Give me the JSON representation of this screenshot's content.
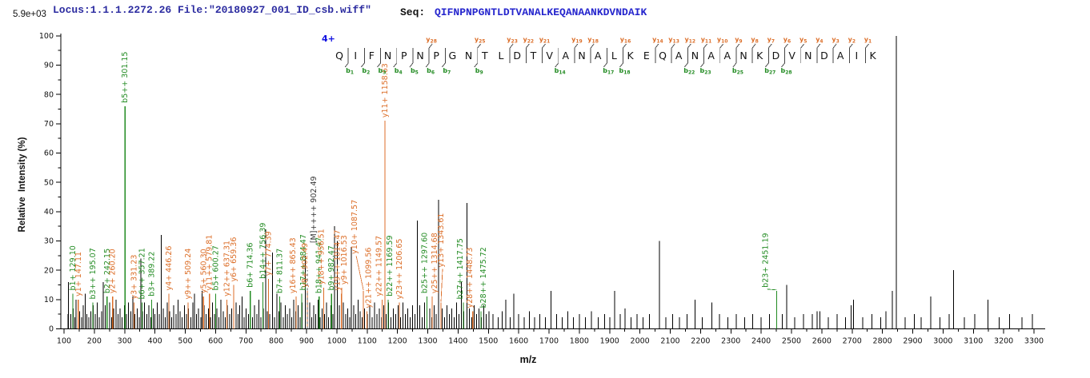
{
  "header": {
    "locus": "Locus:1.1.1.2272.26 File:\"20180927_001_ID_csb.wiff\"",
    "seq_label": "Seq:",
    "sequence": "QIFNPNPGNTLDTVANALKEQANAANKDVNDAIK"
  },
  "chart_data": {
    "type": "bar",
    "subtype": "ms2-stick-spectrum",
    "title": "Locus:1.1.1.2272.26 File:\"20180927_001_ID_csb.wiff\"",
    "xlabel": "m/z",
    "ylabel": "Relative  Intensity (%)",
    "base_peak_intensity": "5.9e+03",
    "xlim": [
      100,
      3300
    ],
    "ylim": [
      0,
      100
    ],
    "x_major_tick": 100,
    "x_minor_tick": 50,
    "y_major_tick": 10,
    "y_minor_tick": 5,
    "grid": false,
    "precursor": {
      "charge_label": "4+",
      "ion": "[M]++++",
      "mz": 902.49
    },
    "peptide": {
      "sequence": "QIFNPNPGNTLDTVANALKEQANAANKDVNDAIK",
      "b_sites": [
        1,
        2,
        3,
        4,
        5,
        6,
        7,
        9,
        14,
        17,
        18,
        22,
        23,
        25,
        27,
        28
      ],
      "y_sites": [
        1,
        2,
        3,
        4,
        5,
        6,
        7,
        8,
        9,
        10,
        11,
        12,
        13,
        14,
        16,
        18,
        19,
        21,
        22,
        23,
        25,
        28
      ]
    },
    "annotated_peaks": [
      {
        "ion": "b1+",
        "mz": 129.1,
        "intensity": 12,
        "series": "b"
      },
      {
        "ion": "y1+",
        "mz": 147.11,
        "intensity": 10,
        "series": "y"
      },
      {
        "ion": "b3++",
        "mz": 195.07,
        "intensity": 9,
        "series": "b"
      },
      {
        "ion": "b2+",
        "mz": 242.15,
        "intensity": 11,
        "series": "b"
      },
      {
        "ion": "y2+",
        "mz": 260.2,
        "intensity": 11,
        "series": "y"
      },
      {
        "ion": "b5++",
        "mz": 301.15,
        "intensity": 76,
        "series": "b"
      },
      {
        "ion": "y3+",
        "mz": 331.23,
        "intensity": 9,
        "series": "y"
      },
      {
        "ion": "b6++",
        "mz": 357.21,
        "intensity": 9,
        "series": "b"
      },
      {
        "ion": "b3+",
        "mz": 389.22,
        "intensity": 10,
        "series": "b"
      },
      {
        "ion": "y4+",
        "mz": 446.26,
        "intensity": 12,
        "series": "y"
      },
      {
        "ion": "y9++",
        "mz": 509.24,
        "intensity": 9,
        "series": "y"
      },
      {
        "ion": "y5+",
        "mz": 560.3,
        "intensity": 11,
        "series": "y"
      },
      {
        "ion": "y11++",
        "mz": 579.81,
        "intensity": 12,
        "series": "y"
      },
      {
        "ion": "b5+",
        "mz": 600.27,
        "intensity": 12,
        "series": "b"
      },
      {
        "ion": "y12++",
        "mz": 637.31,
        "intensity": 10,
        "series": "y"
      },
      {
        "ion": "y6+",
        "mz": 659.36,
        "intensity": 15,
        "series": "y"
      },
      {
        "ion": "b6+",
        "mz": 714.36,
        "intensity": 13,
        "series": "b"
      },
      {
        "ion": "b14++",
        "mz": 756.39,
        "intensity": 16,
        "series": "b"
      },
      {
        "ion": "y7+",
        "mz": 774.39,
        "intensity": 17,
        "series": "y"
      },
      {
        "ion": "b7+",
        "mz": 811.37,
        "intensity": 11,
        "series": "b"
      },
      {
        "ion": "y16++",
        "mz": 865.43,
        "intensity": 11,
        "series": "y",
        "dx": -4
      },
      {
        "ion": "b17++",
        "mz": 884.47,
        "intensity": 12,
        "series": "b",
        "dx": 2
      },
      {
        "ion": "y8+",
        "mz": 902.49,
        "intensity": 13,
        "series": "y",
        "dx": -3
      },
      {
        "ion": "[M]++++",
        "mz": 902.49,
        "intensity": 20,
        "series": "M",
        "dx": 8,
        "lift": 30,
        "dash": true
      },
      {
        "ion": "b18++",
        "mz": 941.47,
        "intensity": 11,
        "series": "b"
      },
      {
        "ion": "y18++",
        "mz": 956.51,
        "intensity": 14,
        "series": "y",
        "dx": -3
      },
      {
        "ion": "b9+",
        "mz": 982.47,
        "intensity": 12,
        "series": "b"
      },
      {
        "ion": "y19++",
        "mz": 1014.47,
        "intensity": 12,
        "series": "y",
        "dx": -5
      },
      {
        "ion": "y9+",
        "mz": 1016.53,
        "intensity": 14,
        "series": "y",
        "dx": 3
      },
      {
        "ion": "y10+",
        "mz": 1087.57,
        "intensity": 13,
        "series": "y",
        "dx": -11,
        "lift": 42,
        "connector": true
      },
      {
        "ion": "y21++",
        "mz": 1099.56,
        "intensity": 6,
        "series": "y",
        "dx": 2
      },
      {
        "ion": "y22++",
        "mz": 1149.57,
        "intensity": 10,
        "series": "y",
        "dx": -4
      },
      {
        "ion": "y11+",
        "mz": 1158.63,
        "intensity": 71,
        "series": "y"
      },
      {
        "ion": "b22++",
        "mz": 1169.59,
        "intensity": 10,
        "series": "b",
        "dx": 2
      },
      {
        "ion": "y23++",
        "mz": 1206.65,
        "intensity": 9,
        "series": "y"
      },
      {
        "ion": "b25++",
        "mz": 1297.6,
        "intensity": 11,
        "series": "b",
        "dx": -3
      },
      {
        "ion": "y25++",
        "mz": 1314.68,
        "intensity": 11,
        "series": "y",
        "dx": 3
      },
      {
        "ion": "y13+",
        "mz": 1343.61,
        "intensity": 9,
        "series": "y",
        "lift": 40,
        "connector": true
      },
      {
        "ion": "b27++",
        "mz": 1417.75,
        "intensity": 9,
        "series": "b",
        "dx": -4
      },
      {
        "ion": "y28++",
        "mz": 1448.73,
        "intensity": 6,
        "series": "y",
        "dx": -4
      },
      {
        "ion": "b28++",
        "mz": 1475.72,
        "intensity": 6,
        "series": "b",
        "dx": 3
      },
      {
        "ion": "b23+",
        "mz": 2451.19,
        "intensity": 13,
        "series": "b",
        "dx": -14,
        "connector": true
      }
    ],
    "unannotated_peaks": [
      [
        113,
        5
      ],
      [
        115,
        16
      ],
      [
        122,
        5
      ],
      [
        130,
        7
      ],
      [
        136,
        4
      ],
      [
        140,
        10
      ],
      [
        146,
        5
      ],
      [
        152,
        6
      ],
      [
        158,
        4
      ],
      [
        163,
        8
      ],
      [
        170,
        12
      ],
      [
        175,
        5
      ],
      [
        182,
        4
      ],
      [
        188,
        6
      ],
      [
        196,
        8
      ],
      [
        203,
        5
      ],
      [
        210,
        9
      ],
      [
        216,
        4
      ],
      [
        224,
        6
      ],
      [
        230,
        16
      ],
      [
        236,
        8
      ],
      [
        243,
        5
      ],
      [
        250,
        9
      ],
      [
        257,
        4
      ],
      [
        264,
        7
      ],
      [
        271,
        10
      ],
      [
        278,
        5
      ],
      [
        285,
        7
      ],
      [
        292,
        4
      ],
      [
        299,
        8
      ],
      [
        306,
        5
      ],
      [
        313,
        9
      ],
      [
        320,
        6
      ],
      [
        327,
        11
      ],
      [
        334,
        5
      ],
      [
        341,
        7
      ],
      [
        348,
        4
      ],
      [
        353,
        24
      ],
      [
        359,
        6
      ],
      [
        366,
        9
      ],
      [
        373,
        5
      ],
      [
        380,
        8
      ],
      [
        387,
        4
      ],
      [
        394,
        7
      ],
      [
        400,
        5
      ],
      [
        407,
        9
      ],
      [
        414,
        5
      ],
      [
        421,
        32
      ],
      [
        427,
        7
      ],
      [
        434,
        4
      ],
      [
        441,
        9
      ],
      [
        448,
        6
      ],
      [
        455,
        4
      ],
      [
        462,
        8
      ],
      [
        469,
        5
      ],
      [
        476,
        10
      ],
      [
        483,
        6
      ],
      [
        490,
        4
      ],
      [
        497,
        8
      ],
      [
        504,
        5
      ],
      [
        511,
        7
      ],
      [
        518,
        4
      ],
      [
        525,
        9
      ],
      [
        530,
        12
      ],
      [
        537,
        5
      ],
      [
        544,
        7
      ],
      [
        551,
        4
      ],
      [
        555,
        13
      ],
      [
        562,
        8
      ],
      [
        569,
        5
      ],
      [
        576,
        7
      ],
      [
        583,
        4
      ],
      [
        590,
        9
      ],
      [
        597,
        5
      ],
      [
        604,
        7
      ],
      [
        611,
        4
      ],
      [
        618,
        10
      ],
      [
        625,
        6
      ],
      [
        632,
        4
      ],
      [
        639,
        8
      ],
      [
        646,
        5
      ],
      [
        653,
        7
      ],
      [
        660,
        4
      ],
      [
        667,
        9
      ],
      [
        674,
        5
      ],
      [
        680,
        8
      ],
      [
        687,
        11
      ],
      [
        694,
        4
      ],
      [
        701,
        7
      ],
      [
        708,
        5
      ],
      [
        715,
        9
      ],
      [
        722,
        4
      ],
      [
        729,
        8
      ],
      [
        736,
        5
      ],
      [
        743,
        10
      ],
      [
        750,
        4
      ],
      [
        757,
        7
      ],
      [
        765,
        34
      ],
      [
        771,
        6
      ],
      [
        779,
        5
      ],
      [
        788,
        26
      ],
      [
        795,
        4
      ],
      [
        802,
        12
      ],
      [
        809,
        6
      ],
      [
        816,
        9
      ],
      [
        823,
        4
      ],
      [
        830,
        8
      ],
      [
        837,
        5
      ],
      [
        844,
        7
      ],
      [
        851,
        4
      ],
      [
        858,
        10
      ],
      [
        865,
        6
      ],
      [
        872,
        8
      ],
      [
        879,
        4
      ],
      [
        886,
        9
      ],
      [
        896,
        25
      ],
      [
        903,
        5
      ],
      [
        910,
        9
      ],
      [
        917,
        4
      ],
      [
        924,
        8
      ],
      [
        931,
        5
      ],
      [
        938,
        10
      ],
      [
        945,
        4
      ],
      [
        952,
        7
      ],
      [
        959,
        5
      ],
      [
        966,
        9
      ],
      [
        973,
        4
      ],
      [
        980,
        8
      ],
      [
        987,
        5
      ],
      [
        992,
        35
      ],
      [
        1001,
        30
      ],
      [
        1008,
        8
      ],
      [
        1015,
        4
      ],
      [
        1022,
        9
      ],
      [
        1029,
        5
      ],
      [
        1036,
        7
      ],
      [
        1043,
        4
      ],
      [
        1048,
        28
      ],
      [
        1056,
        8
      ],
      [
        1063,
        5
      ],
      [
        1070,
        10
      ],
      [
        1077,
        6
      ],
      [
        1084,
        4
      ],
      [
        1092,
        7
      ],
      [
        1100,
        5
      ],
      [
        1108,
        8
      ],
      [
        1116,
        4
      ],
      [
        1124,
        9
      ],
      [
        1132,
        5
      ],
      [
        1140,
        7
      ],
      [
        1148,
        4
      ],
      [
        1155,
        8
      ],
      [
        1163,
        5
      ],
      [
        1170,
        9
      ],
      [
        1178,
        4
      ],
      [
        1186,
        7
      ],
      [
        1194,
        5
      ],
      [
        1202,
        8
      ],
      [
        1210,
        4
      ],
      [
        1218,
        9
      ],
      [
        1226,
        5
      ],
      [
        1234,
        7
      ],
      [
        1242,
        4
      ],
      [
        1250,
        8
      ],
      [
        1258,
        5
      ],
      [
        1266,
        37
      ],
      [
        1274,
        8
      ],
      [
        1281,
        4
      ],
      [
        1289,
        9
      ],
      [
        1297,
        5
      ],
      [
        1306,
        7
      ],
      [
        1313,
        4
      ],
      [
        1321,
        8
      ],
      [
        1328,
        5
      ],
      [
        1335,
        44
      ],
      [
        1347,
        7
      ],
      [
        1355,
        4
      ],
      [
        1363,
        8
      ],
      [
        1371,
        5
      ],
      [
        1379,
        7
      ],
      [
        1387,
        4
      ],
      [
        1395,
        9
      ],
      [
        1403,
        5
      ],
      [
        1411,
        16
      ],
      [
        1419,
        6
      ],
      [
        1429,
        43
      ],
      [
        1437,
        7
      ],
      [
        1445,
        4
      ],
      [
        1453,
        8
      ],
      [
        1461,
        5
      ],
      [
        1469,
        7
      ],
      [
        1477,
        4
      ],
      [
        1485,
        8
      ],
      [
        1493,
        5
      ],
      [
        1502,
        6
      ],
      [
        1515,
        5
      ],
      [
        1532,
        4
      ],
      [
        1545,
        6
      ],
      [
        1558,
        10
      ],
      [
        1572,
        4
      ],
      [
        1584,
        12
      ],
      [
        1600,
        5
      ],
      [
        1618,
        4
      ],
      [
        1635,
        6
      ],
      [
        1652,
        4
      ],
      [
        1670,
        5
      ],
      [
        1688,
        4
      ],
      [
        1707,
        13
      ],
      [
        1725,
        5
      ],
      [
        1743,
        4
      ],
      [
        1762,
        6
      ],
      [
        1780,
        4
      ],
      [
        1800,
        5
      ],
      [
        1820,
        4
      ],
      [
        1840,
        6
      ],
      [
        1862,
        4
      ],
      [
        1884,
        5
      ],
      [
        1900,
        4
      ],
      [
        1917,
        13
      ],
      [
        1935,
        5
      ],
      [
        1951,
        7
      ],
      [
        1970,
        4
      ],
      [
        1990,
        5
      ],
      [
        2010,
        4
      ],
      [
        2032,
        5
      ],
      [
        2065,
        30
      ],
      [
        2085,
        4
      ],
      [
        2108,
        5
      ],
      [
        2130,
        4
      ],
      [
        2155,
        5
      ],
      [
        2182,
        10
      ],
      [
        2205,
        4
      ],
      [
        2237,
        9
      ],
      [
        2262,
        5
      ],
      [
        2290,
        4
      ],
      [
        2318,
        5
      ],
      [
        2345,
        4
      ],
      [
        2372,
        5
      ],
      [
        2400,
        4
      ],
      [
        2428,
        5
      ],
      [
        2469,
        5
      ],
      [
        2484,
        15
      ],
      [
        2510,
        4
      ],
      [
        2540,
        5
      ],
      [
        2568,
        5
      ],
      [
        2584,
        6
      ],
      [
        2594,
        6
      ],
      [
        2622,
        4
      ],
      [
        2650,
        5
      ],
      [
        2678,
        4
      ],
      [
        2697,
        8
      ],
      [
        2705,
        10
      ],
      [
        2735,
        4
      ],
      [
        2765,
        5
      ],
      [
        2795,
        4
      ],
      [
        2812,
        6
      ],
      [
        2833,
        13
      ],
      [
        2846,
        100
      ],
      [
        2875,
        4
      ],
      [
        2905,
        5
      ],
      [
        2928,
        4
      ],
      [
        2959,
        11
      ],
      [
        2990,
        4
      ],
      [
        3020,
        5
      ],
      [
        3035,
        20
      ],
      [
        3070,
        4
      ],
      [
        3105,
        5
      ],
      [
        3148,
        10
      ],
      [
        3185,
        4
      ],
      [
        3220,
        5
      ],
      [
        3260,
        4
      ],
      [
        3295,
        5
      ]
    ],
    "colors": {
      "b_ion": "#228B22",
      "y_ion": "#DC6E28",
      "unassigned": "#000000",
      "precursor": "#555555",
      "axis": "#000000",
      "header_blue": "#2B2BA0",
      "sequence_blue": "#2525CD",
      "charge_blue": "#1010E0",
      "residue": "#111111"
    }
  }
}
